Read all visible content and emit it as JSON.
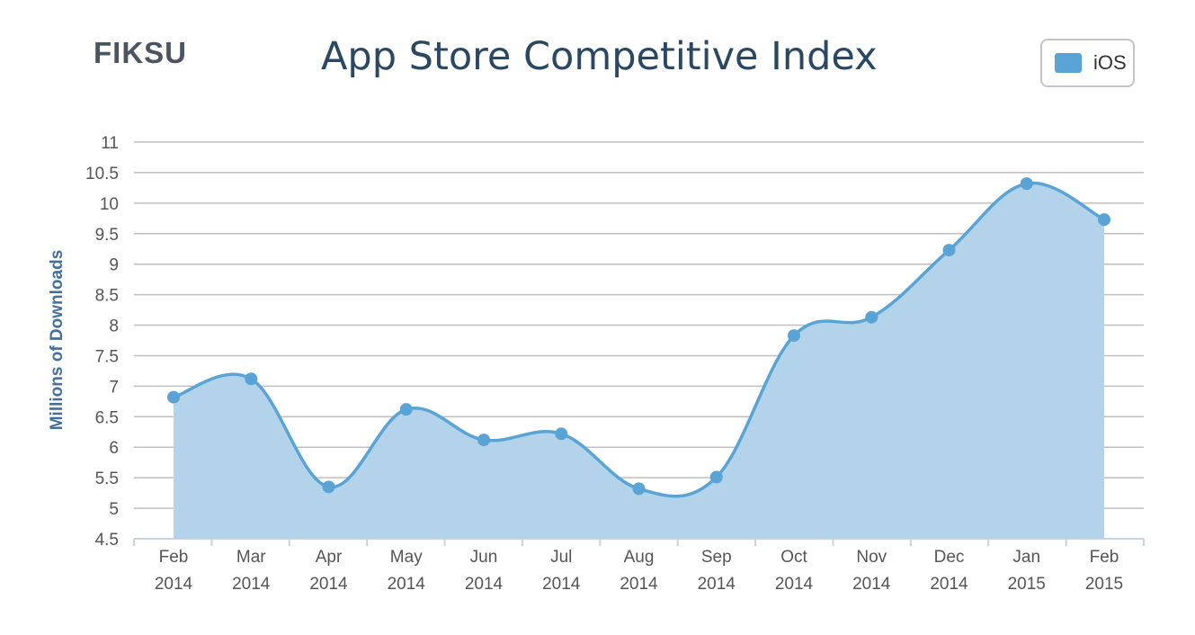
{
  "header": {
    "logo_text": "FIKSU",
    "title": "App Store Competitive Index"
  },
  "legend": {
    "label": "iOS",
    "color": "#5aa3d6"
  },
  "chart_data": {
    "type": "area",
    "title": "App Store Competitive Index",
    "ylabel": "Millions of Downloads",
    "xlabel": "",
    "ylim": [
      4.5,
      11
    ],
    "yticks": [
      "4.5",
      "5",
      "5.5",
      "6",
      "6.5",
      "7",
      "7.5",
      "8",
      "8.5",
      "9",
      "9.5",
      "10",
      "10.5",
      "11"
    ],
    "categories": [
      [
        "Feb",
        "2014"
      ],
      [
        "Mar",
        "2014"
      ],
      [
        "Apr",
        "2014"
      ],
      [
        "May",
        "2014"
      ],
      [
        "Jun",
        "2014"
      ],
      [
        "Jul",
        "2014"
      ],
      [
        "Aug",
        "2014"
      ],
      [
        "Sep",
        "2014"
      ],
      [
        "Oct",
        "2014"
      ],
      [
        "Nov",
        "2014"
      ],
      [
        "Dec",
        "2014"
      ],
      [
        "Jan",
        "2015"
      ],
      [
        "Feb",
        "2015"
      ]
    ],
    "series": [
      {
        "name": "iOS",
        "values": [
          6.82,
          7.12,
          5.35,
          6.62,
          6.12,
          6.22,
          5.32,
          5.51,
          7.83,
          8.13,
          9.23,
          10.32,
          9.73
        ]
      }
    ],
    "grid": true,
    "legend_position": "top-right",
    "colors": {
      "line": "#5aa3d6",
      "fill": "#b2d3ea",
      "grid": "#bfbfbf"
    }
  }
}
